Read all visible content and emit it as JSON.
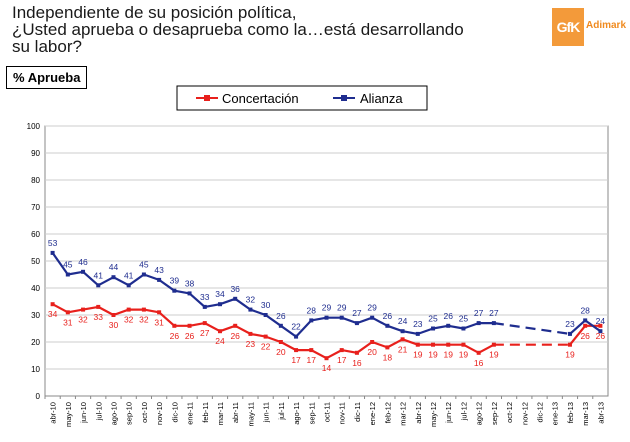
{
  "title": "Independiente de su posición política,\n¿Usted aprueba o desaprueba como la…está desarrollando\nsu labor?",
  "logo": {
    "brand": "GfK",
    "name": "Adimark",
    "color": "#f39a3a"
  },
  "subtitle": "% Aprueba",
  "colors": {
    "concertacion": "#e8201c",
    "alianza": "#1f2d8f",
    "grid": "#cccccc",
    "axis": "#888888"
  },
  "chart_data": {
    "type": "line",
    "ylim": [
      0,
      100
    ],
    "yticks": [
      0,
      10,
      20,
      30,
      40,
      50,
      60,
      70,
      80,
      90,
      100
    ],
    "categories": [
      "abr-10",
      "may-10",
      "jun-10",
      "jul-10",
      "ago-10",
      "sep-10",
      "oct-10",
      "nov-10",
      "dic-10",
      "ene-11",
      "feb-11",
      "mar-11",
      "abr-11",
      "may-11",
      "jun-11",
      "jul-11",
      "ago-11",
      "sep-11",
      "oct-11",
      "nov-11",
      "dic-11",
      "ene-12",
      "feb-12",
      "mar-12",
      "abr-12",
      "may-12",
      "jun-12",
      "jul-12",
      "ago-12",
      "sep-12",
      "oct-12",
      "nov-12",
      "dic-12",
      "ene-13",
      "feb-13",
      "mar-13",
      "abr-13"
    ],
    "series": [
      {
        "name": "Concertación",
        "values": [
          34,
          31,
          32,
          33,
          30,
          32,
          32,
          31,
          26,
          26,
          27,
          24,
          26,
          23,
          22,
          20,
          17,
          17,
          14,
          17,
          16,
          20,
          18,
          21,
          19,
          19,
          19,
          19,
          16,
          19,
          null,
          null,
          null,
          null,
          19,
          26,
          26
        ],
        "data_labels": [
          "34",
          "31",
          "32",
          "33",
          "30",
          "32",
          "32",
          "31",
          "26",
          "26",
          "27",
          "24",
          "26",
          "23",
          "22",
          "20",
          "17",
          "17",
          "14",
          "17",
          "16",
          "20",
          "18",
          "21",
          "19",
          "19",
          "19",
          "19",
          "16",
          "19",
          "",
          "",
          "",
          "",
          "19",
          "26",
          "26"
        ]
      },
      {
        "name": "Alianza",
        "values": [
          53,
          45,
          46,
          41,
          44,
          41,
          45,
          43,
          39,
          38,
          33,
          34,
          36,
          32,
          30,
          26,
          22,
          28,
          29,
          29,
          27,
          29,
          26,
          24,
          23,
          25,
          26,
          25,
          27,
          27,
          null,
          null,
          null,
          null,
          23,
          28,
          24
        ],
        "data_labels": [
          "53",
          "45",
          "46",
          "41",
          "44",
          "41",
          "45",
          "43",
          "39",
          "38",
          "33",
          "34",
          "36",
          "32",
          "30",
          "26",
          "22",
          "28",
          "29",
          "29",
          "27",
          "29",
          "26",
          "24",
          "23",
          "25",
          "26",
          "25",
          "27",
          "27",
          "",
          "",
          "",
          "",
          "23",
          "28",
          "24"
        ]
      }
    ]
  }
}
